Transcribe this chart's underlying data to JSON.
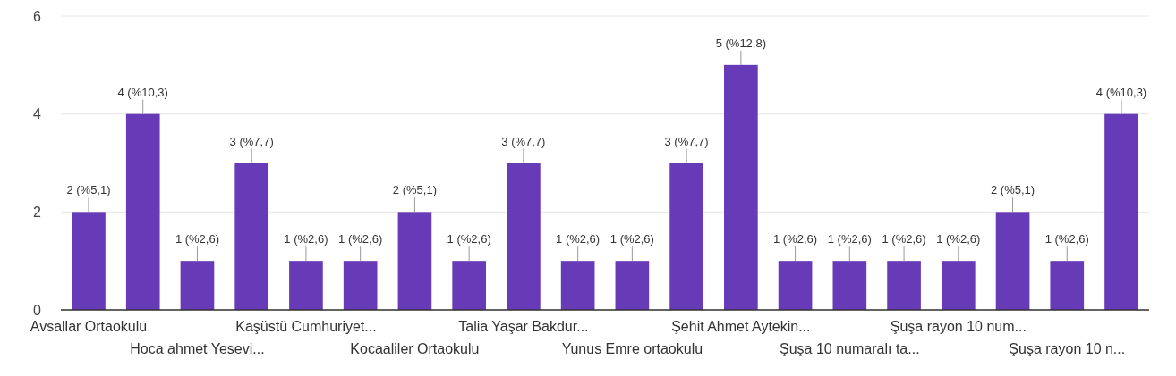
{
  "chart_data": {
    "type": "bar",
    "categories": [
      "Avsallar Ortaokulu",
      null,
      "Hoca ahmet Yesevi...",
      null,
      "Kaşüstü Cumhuriyet...",
      null,
      "Kocaaliler Ortaokulu",
      null,
      "Talia Yaşar Bakdur...",
      null,
      "Yunus Emre ortaokulu",
      null,
      "Şehit Ahmet Aytekin...",
      null,
      "Şuşa 10 numaralı ta...",
      null,
      "Şuşa rayon 10 num...",
      null,
      "Şuşa rayon 10 n...",
      null
    ],
    "values": [
      2,
      4,
      1,
      3,
      1,
      1,
      2,
      1,
      3,
      1,
      1,
      3,
      5,
      1,
      1,
      1,
      1,
      2,
      1,
      4
    ],
    "value_labels": [
      "2 (%5,1)",
      "4 (%10,3)",
      "1 (%2,6)",
      "3 (%7,7)",
      "1 (%2,6)",
      "1 (%2,6)",
      "2 (%5,1)",
      "1 (%2,6)",
      "3 (%7,7)",
      "1 (%2,6)",
      "1 (%2,6)",
      "3 (%7,7)",
      "5 (%12,8)",
      "1 (%2,6)",
      "1 (%2,6)",
      "1 (%2,6)",
      "1 (%2,6)",
      "2 (%5,1)",
      "1 (%2,6)",
      "4 (%10,3)"
    ],
    "color": "#673ab7",
    "ylim": [
      0,
      6
    ],
    "yticks": [
      0,
      2,
      4,
      6
    ],
    "grid": true
  }
}
